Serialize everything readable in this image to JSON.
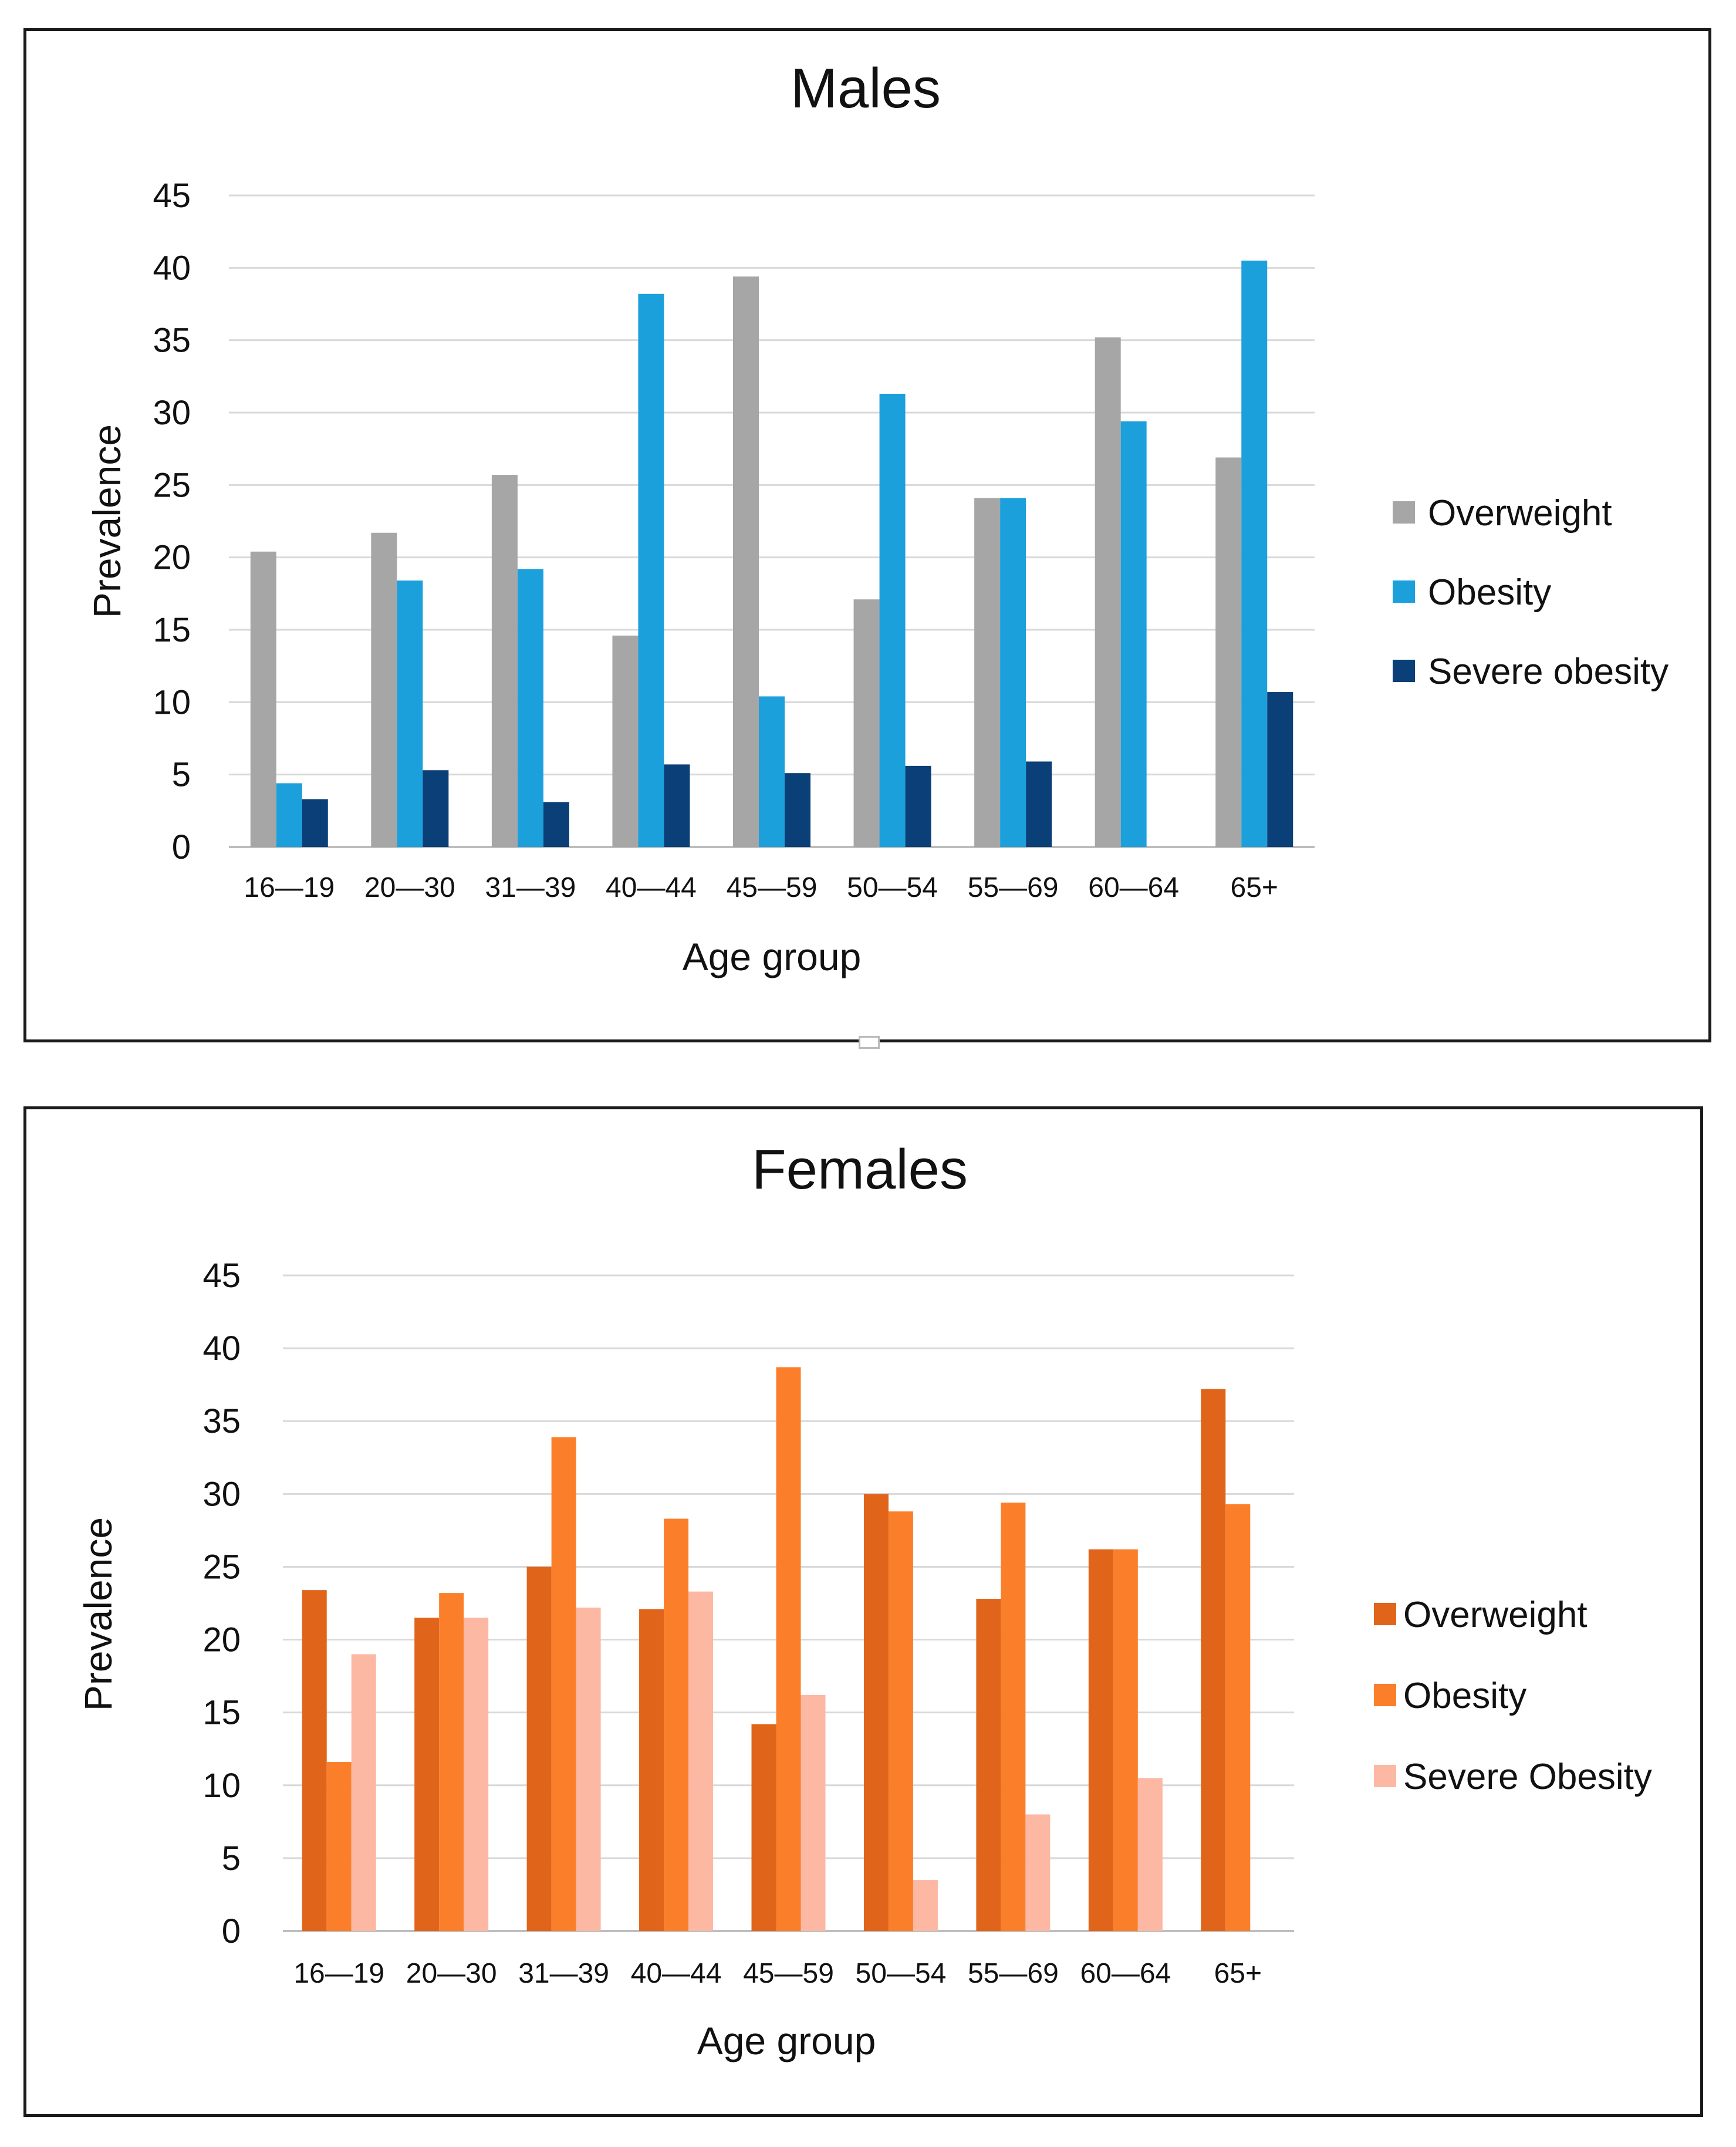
{
  "chart_data": [
    {
      "type": "bar",
      "title": "Males",
      "xlabel": "Age group",
      "ylabel": "Prevalence",
      "ylim": [
        0,
        45
      ],
      "yticks": [
        "0",
        "5",
        "10",
        "15",
        "20",
        "25",
        "30",
        "35",
        "40",
        "45"
      ],
      "grid": true,
      "legend_position": "right",
      "categories": [
        "16—19",
        "20—30",
        "31—39",
        "40—44",
        "45—59",
        "50—54",
        "55—69",
        "60—64",
        "65+"
      ],
      "series": [
        {
          "name": "Overweight",
          "color": "#a6a6a6",
          "values": [
            20.4,
            21.7,
            25.7,
            14.6,
            39.4,
            17.1,
            24.1,
            35.2,
            26.9
          ]
        },
        {
          "name": "Obesity",
          "color": "#1ca0dc",
          "values": [
            4.4,
            18.4,
            19.2,
            38.2,
            10.4,
            31.3,
            24.1,
            29.4,
            40.5
          ]
        },
        {
          "name": "Severe obesity",
          "color": "#0a3f77",
          "values": [
            3.3,
            5.3,
            3.1,
            5.7,
            5.1,
            5.6,
            5.9,
            0,
            10.7
          ]
        }
      ]
    },
    {
      "type": "bar",
      "title": "Females",
      "xlabel": "Age group",
      "ylabel": "Prevalence",
      "ylim": [
        0,
        45
      ],
      "yticks": [
        "0",
        "5",
        "10",
        "15",
        "20",
        "25",
        "30",
        "35",
        "40",
        "45"
      ],
      "grid": true,
      "legend_position": "right",
      "categories": [
        "16—19",
        "20—30",
        "31—39",
        "40—44",
        "45—59",
        "50—54",
        "55—69",
        "60—64",
        "65+"
      ],
      "series": [
        {
          "name": "Overweight",
          "color": "#e0651a",
          "values": [
            23.4,
            21.5,
            25.0,
            22.1,
            14.2,
            30.0,
            22.8,
            26.2,
            37.2
          ]
        },
        {
          "name": "Obesity",
          "color": "#fb7f2b",
          "values": [
            11.6,
            23.2,
            33.9,
            28.3,
            38.7,
            28.8,
            29.4,
            26.2,
            29.3
          ]
        },
        {
          "name": "Severe Obesity",
          "color": "#fcb8a3",
          "values": [
            19.0,
            21.5,
            22.2,
            23.3,
            16.2,
            3.5,
            8.0,
            10.5,
            0
          ]
        }
      ]
    }
  ]
}
